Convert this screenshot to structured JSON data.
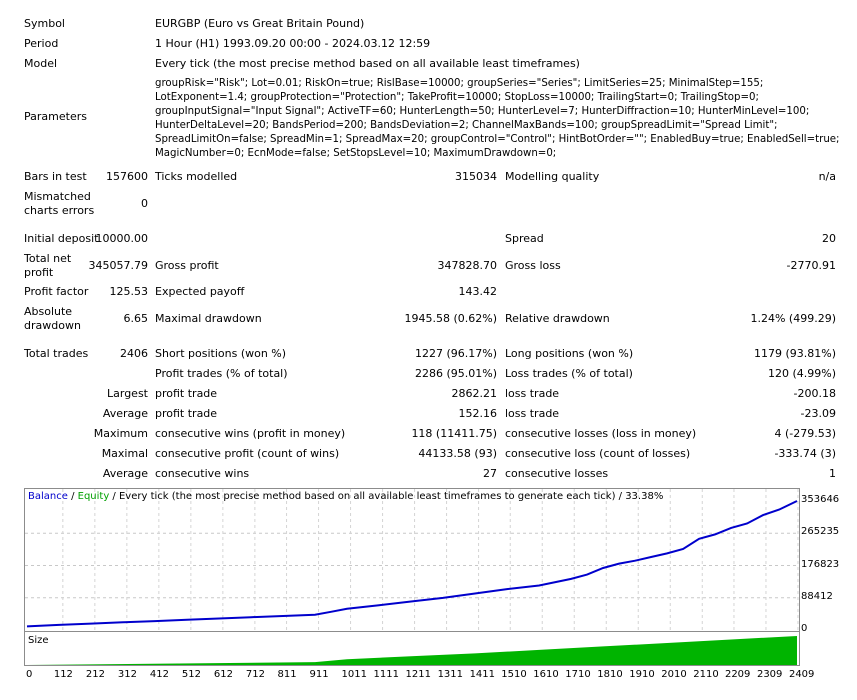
{
  "header": {
    "symbol_label": "Symbol",
    "symbol_value": "EURGBP (Euro vs Great Britain Pound)",
    "period_label": "Period",
    "period_value": "1 Hour (H1) 1993.09.20 00:00 - 2024.03.12 12:59",
    "model_label": "Model",
    "model_value": "Every tick (the most precise method based on all available least timeframes)",
    "parameters_label": "Parameters",
    "parameters_value": "groupRisk=\"Risk\"; Lot=0.01; RiskOn=true; RislBase=10000; groupSeries=\"Series\"; LimitSeries=25; MinimalStep=155; LotExponent=1.4; groupProtection=\"Protection\"; TakeProfit=10000; StopLoss=10000; TrailingStart=0; TrailingStop=0; groupInputSignal=\"Input Signal\"; ActiveTF=60; HunterLength=50; HunterLevel=7; HunterDiffraction=10; HunterMinLevel=100; HunterDeltaLevel=20; BandsPeriod=200; BandsDeviation=2; ChannelMaxBands=100; groupSpreadLimit=\"Spread Limit\"; SpreadLimitOn=false; SpreadMin=1; SpreadMax=20; groupControl=\"Control\"; HintBotOrder=\"\"; EnabledBuy=true; EnabledSell=true; MagicNumber=0; EcnMode=false; SetStopsLevel=10; MaximumDrawdown=0;"
  },
  "stats": {
    "bars_label": "Bars in test",
    "bars_value": "157600",
    "ticks_label": "Ticks modelled",
    "ticks_value": "315034",
    "quality_label": "Modelling quality",
    "quality_value": "n/a",
    "mismatch_label_1": "Mismatched",
    "mismatch_label_2": "charts errors",
    "mismatch_value": "0",
    "deposit_label": "Initial deposit",
    "deposit_value": "10000.00",
    "spread_label": "Spread",
    "spread_value": "20",
    "netprofit_label_1": "Total net",
    "netprofit_label_2": "profit",
    "netprofit_value": "345057.79",
    "grossprofit_label": "Gross profit",
    "grossprofit_value": "347828.70",
    "grossloss_label": "Gross loss",
    "grossloss_value": "-2770.91",
    "pf_label": "Profit factor",
    "pf_value": "125.53",
    "payoff_label": "Expected payoff",
    "payoff_value": "143.42",
    "absdd_label_1": "Absolute",
    "absdd_label_2": "drawdown",
    "absdd_value": "6.65",
    "maxdd_label": "Maximal drawdown",
    "maxdd_value": "1945.58 (0.62%)",
    "reldd_label": "Relative drawdown",
    "reldd_value": "1.24% (499.29)",
    "trades_label": "Total trades",
    "trades_value": "2406",
    "short_label": "Short positions (won %)",
    "short_value": "1227 (96.17%)",
    "long_label": "Long positions (won %)",
    "long_value": "1179 (93.81%)",
    "profittrades_label": "Profit trades (% of total)",
    "profittrades_value": "2286 (95.01%)",
    "losstrades_label": "Loss trades (% of total)",
    "losstrades_value": "120 (4.99%)",
    "largest_label": "Largest",
    "largest_profit_label": "profit trade",
    "largest_profit_value": "2862.21",
    "largest_loss_label": "loss trade",
    "largest_loss_value": "-200.18",
    "average_label": "Average",
    "average_profit_label": "profit trade",
    "average_profit_value": "152.16",
    "average_loss_label": "loss trade",
    "average_loss_value": "-23.09",
    "maximum_label": "Maximum",
    "max_wins_label": "consecutive wins (profit in money)",
    "max_wins_value": "118 (11411.75)",
    "max_losses_label": "consecutive losses (loss in money)",
    "max_losses_value": "4 (-279.53)",
    "maximal_label": "Maximal",
    "maximal_profit_label": "consecutive profit (count of wins)",
    "maximal_profit_value": "44133.58 (93)",
    "maximal_loss_label": "consecutive loss (count of losses)",
    "maximal_loss_value": "-333.74 (3)",
    "avg2_label": "Average",
    "avg_wins_label": "consecutive wins",
    "avg_wins_value": "27",
    "avg_losses_label": "consecutive losses",
    "avg_losses_value": "1"
  },
  "chart": {
    "balance_label": "Balance",
    "sep1": " / ",
    "equity_label": "Equity",
    "caption_rest": " / Every tick (the most precise method based on all available least timeframes to generate each tick) / 33.38%",
    "size_label": "Size",
    "colors": {
      "balance": "#0000cc",
      "equity": "#00a000",
      "size": "#00b400"
    }
  },
  "chart_data": {
    "type": "line",
    "title": "",
    "ylabels": [
      "353646",
      "265235",
      "176823",
      "88412",
      "0"
    ],
    "xlabels": [
      "0",
      "112",
      "212",
      "312",
      "412",
      "512",
      "612",
      "712",
      "811",
      "911",
      "1011",
      "1111",
      "1211",
      "1311",
      "1411",
      "1510",
      "1610",
      "1710",
      "1810",
      "1910",
      "2010",
      "2110",
      "2209",
      "2309",
      "2409"
    ],
    "ylim": [
      0,
      353646
    ],
    "xlim": [
      0,
      2406
    ],
    "series": [
      {
        "name": "Balance",
        "x": [
          0,
          100,
          200,
          300,
          400,
          500,
          600,
          700,
          800,
          900,
          950,
          1000,
          1100,
          1200,
          1300,
          1400,
          1500,
          1600,
          1700,
          1750,
          1800,
          1850,
          1900,
          1950,
          2000,
          2050,
          2100,
          2150,
          2200,
          2250,
          2300,
          2350,
          2406
        ],
        "y": [
          10000,
          14000,
          17500,
          21000,
          24500,
          28000,
          31500,
          35000,
          38500,
          42000,
          50000,
          58000,
          68000,
          78000,
          88000,
          100000,
          112000,
          122000,
          140000,
          152000,
          170000,
          182000,
          190000,
          200000,
          210000,
          222000,
          250000,
          262000,
          280000,
          292000,
          315000,
          330000,
          353646
        ]
      }
    ],
    "size_series": {
      "name": "Size",
      "x": [
        0,
        900,
        1000,
        1200,
        1400,
        1600,
        1800,
        2000,
        2200,
        2406
      ],
      "y": [
        0,
        0.1,
        0.2,
        0.3,
        0.4,
        0.52,
        0.64,
        0.76,
        0.88,
        1.0
      ]
    }
  }
}
